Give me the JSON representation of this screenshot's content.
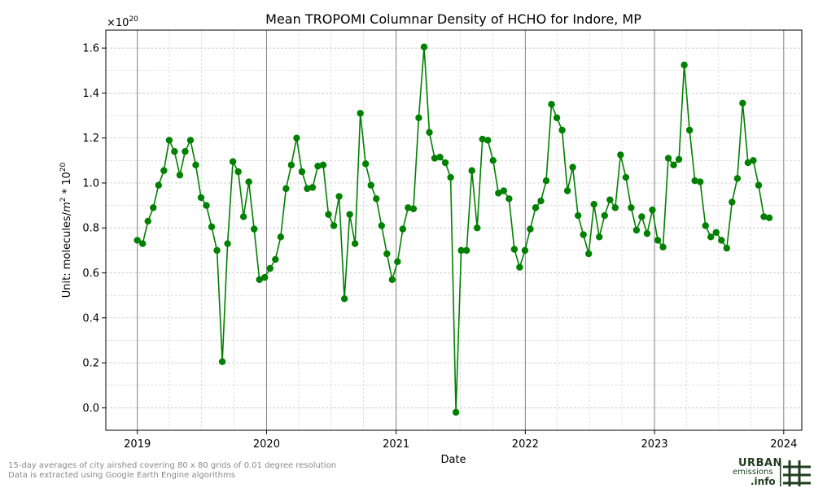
{
  "chart_data": {
    "type": "line",
    "title": "Mean TROPOMI Columnar Density of HCHO for Indore, MP",
    "xlabel": "Date",
    "ylabel_prefix": "Unit: molecules/",
    "ylabel_m": "m",
    "ylabel_m_exp": "2",
    "ylabel_mid": " * 10",
    "ylabel_exp": "20",
    "scale_base": "×10",
    "scale_exp": "20",
    "x_ticks": [
      "2019",
      "2020",
      "2021",
      "2022",
      "2023",
      "2024"
    ],
    "y_ticks": [
      "0.0",
      "0.2",
      "0.4",
      "0.6",
      "0.8",
      "1.0",
      "1.2",
      "1.4",
      "1.6"
    ],
    "xlim": [
      "2018-10-04",
      "2024-02-21"
    ],
    "ylim": [
      -0.1,
      1.68
    ],
    "grid": true,
    "series": [
      {
        "color": "#008000",
        "marker": "circle",
        "points": [
          [
            "2019-01-01",
            0.745
          ],
          [
            "2019-01-16",
            0.73
          ],
          [
            "2019-01-31",
            0.83
          ],
          [
            "2019-02-15",
            0.89
          ],
          [
            "2019-03-02",
            0.99
          ],
          [
            "2019-03-17",
            1.055
          ],
          [
            "2019-04-01",
            1.19
          ],
          [
            "2019-04-16",
            1.14
          ],
          [
            "2019-05-01",
            1.035
          ],
          [
            "2019-05-16",
            1.14
          ],
          [
            "2019-05-31",
            1.19
          ],
          [
            "2019-06-15",
            1.08
          ],
          [
            "2019-06-30",
            0.935
          ],
          [
            "2019-07-15",
            0.9
          ],
          [
            "2019-07-30",
            0.805
          ],
          [
            "2019-08-14",
            0.7
          ],
          [
            "2019-08-29",
            0.205
          ],
          [
            "2019-09-13",
            0.73
          ],
          [
            "2019-09-28",
            1.095
          ],
          [
            "2019-10-13",
            1.05
          ],
          [
            "2019-10-28",
            0.85
          ],
          [
            "2019-11-12",
            1.005
          ],
          [
            "2019-11-27",
            0.795
          ],
          [
            "2019-12-12",
            0.57
          ],
          [
            "2019-12-27",
            0.58
          ],
          [
            "2020-01-11",
            0.62
          ],
          [
            "2020-01-26",
            0.66
          ],
          [
            "2020-02-10",
            0.76
          ],
          [
            "2020-02-25",
            0.975
          ],
          [
            "2020-03-11",
            1.08
          ],
          [
            "2020-03-26",
            1.2
          ],
          [
            "2020-04-10",
            1.05
          ],
          [
            "2020-04-25",
            0.975
          ],
          [
            "2020-05-10",
            0.98
          ],
          [
            "2020-05-25",
            1.075
          ],
          [
            "2020-06-09",
            1.08
          ],
          [
            "2020-06-24",
            0.86
          ],
          [
            "2020-07-09",
            0.81
          ],
          [
            "2020-07-24",
            0.94
          ],
          [
            "2020-08-08",
            0.485
          ],
          [
            "2020-08-23",
            0.86
          ],
          [
            "2020-09-07",
            0.73
          ],
          [
            "2020-09-22",
            1.31
          ],
          [
            "2020-10-07",
            1.085
          ],
          [
            "2020-10-22",
            0.99
          ],
          [
            "2020-11-06",
            0.93
          ],
          [
            "2020-11-21",
            0.81
          ],
          [
            "2020-12-06",
            0.685
          ],
          [
            "2020-12-21",
            0.57
          ],
          [
            "2021-01-05",
            0.65
          ],
          [
            "2021-01-20",
            0.795
          ],
          [
            "2021-02-04",
            0.89
          ],
          [
            "2021-02-19",
            0.885
          ],
          [
            "2021-03-06",
            1.29
          ],
          [
            "2021-03-21",
            1.605
          ],
          [
            "2021-04-05",
            1.225
          ],
          [
            "2021-04-20",
            1.11
          ],
          [
            "2021-05-05",
            1.115
          ],
          [
            "2021-05-20",
            1.09
          ],
          [
            "2021-06-04",
            1.025
          ],
          [
            "2021-06-19",
            -0.02
          ],
          [
            "2021-07-04",
            0.7
          ],
          [
            "2021-07-19",
            0.7
          ],
          [
            "2021-08-03",
            1.055
          ],
          [
            "2021-08-18",
            0.8
          ],
          [
            "2021-09-02",
            1.195
          ],
          [
            "2021-09-17",
            1.19
          ],
          [
            "2021-10-02",
            1.1
          ],
          [
            "2021-10-17",
            0.955
          ],
          [
            "2021-11-01",
            0.965
          ],
          [
            "2021-11-16",
            0.93
          ],
          [
            "2021-12-01",
            0.705
          ],
          [
            "2021-12-16",
            0.625
          ],
          [
            "2021-12-31",
            0.7
          ],
          [
            "2022-01-15",
            0.795
          ],
          [
            "2022-01-30",
            0.89
          ],
          [
            "2022-02-14",
            0.92
          ],
          [
            "2022-03-01",
            1.01
          ],
          [
            "2022-03-16",
            1.35
          ],
          [
            "2022-03-31",
            1.29
          ],
          [
            "2022-04-15",
            1.235
          ],
          [
            "2022-04-30",
            0.965
          ],
          [
            "2022-05-15",
            1.07
          ],
          [
            "2022-05-30",
            0.855
          ],
          [
            "2022-06-14",
            0.77
          ],
          [
            "2022-06-29",
            0.685
          ],
          [
            "2022-07-14",
            0.905
          ],
          [
            "2022-07-29",
            0.76
          ],
          [
            "2022-08-13",
            0.855
          ],
          [
            "2022-08-28",
            0.925
          ],
          [
            "2022-09-12",
            0.89
          ],
          [
            "2022-09-27",
            1.125
          ],
          [
            "2022-10-12",
            1.025
          ],
          [
            "2022-10-27",
            0.89
          ],
          [
            "2022-11-11",
            0.79
          ],
          [
            "2022-11-26",
            0.85
          ],
          [
            "2022-12-11",
            0.775
          ],
          [
            "2022-12-26",
            0.88
          ],
          [
            "2023-01-10",
            0.745
          ],
          [
            "2023-01-25",
            0.715
          ],
          [
            "2023-02-09",
            1.11
          ],
          [
            "2023-02-24",
            1.08
          ],
          [
            "2023-03-11",
            1.105
          ],
          [
            "2023-03-26",
            1.525
          ],
          [
            "2023-04-10",
            1.235
          ],
          [
            "2023-04-25",
            1.01
          ],
          [
            "2023-05-10",
            1.005
          ],
          [
            "2023-05-25",
            0.81
          ],
          [
            "2023-06-09",
            0.76
          ],
          [
            "2023-06-24",
            0.78
          ],
          [
            "2023-07-09",
            0.745
          ],
          [
            "2023-07-24",
            0.71
          ],
          [
            "2023-08-08",
            0.915
          ],
          [
            "2023-08-23",
            1.02
          ],
          [
            "2023-09-07",
            1.355
          ],
          [
            "2023-09-22",
            1.09
          ],
          [
            "2023-10-07",
            1.1
          ],
          [
            "2023-10-22",
            0.99
          ],
          [
            "2023-11-06",
            0.85
          ],
          [
            "2023-11-21",
            0.845
          ]
        ]
      }
    ]
  },
  "footnote": {
    "line1": "15-day averages of city airshed covering 80 x 80 grids of 0.01 degree resolution",
    "line2": "Data is extracted using Google Earth Engine algorithms"
  },
  "logo": {
    "line1": "URBAN",
    "line2": "emissions",
    "line3": ".info",
    "color": "#1f3d1f"
  }
}
